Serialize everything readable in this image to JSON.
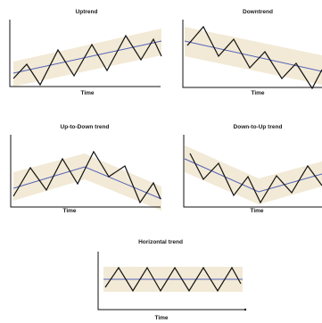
{
  "panels": [
    {
      "title": "Uptrend",
      "xlabel": "Time",
      "trend": "up"
    },
    {
      "title": "Downtrend",
      "xlabel": "Time",
      "trend": "down"
    },
    {
      "title": "Up-to-Down trend",
      "xlabel": "Time",
      "trend": "up-to-down"
    },
    {
      "title": "Down-to-Up trend",
      "xlabel": "Time",
      "trend": "down-to-up"
    },
    {
      "title": "Horizontal trend",
      "xlabel": "Time",
      "trend": "horizontal"
    }
  ],
  "colors": {
    "band": "#f2ead6",
    "price_line": "#111111",
    "trend_line": "#5562b8",
    "axis": "#111111"
  }
}
